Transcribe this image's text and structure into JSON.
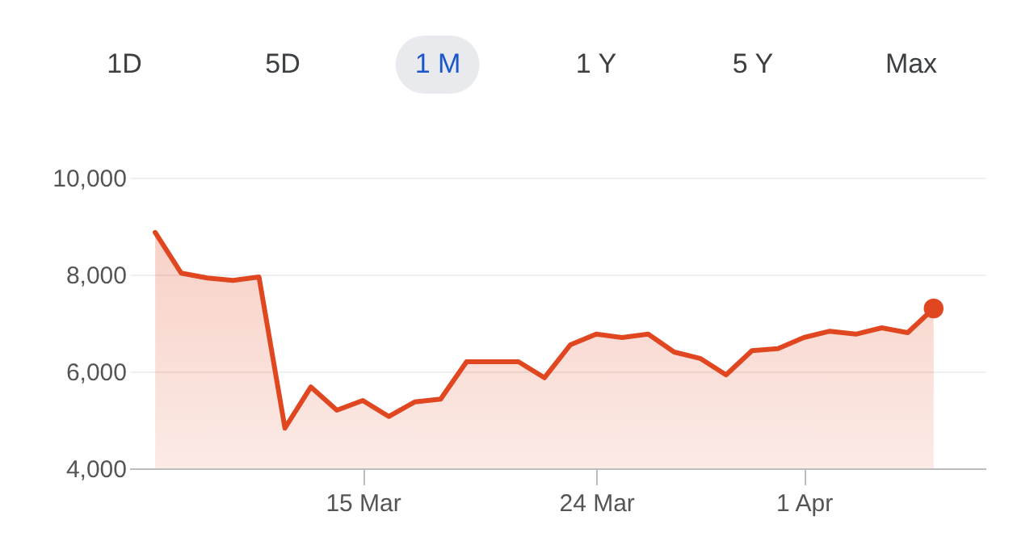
{
  "chart_data": {
    "type": "area",
    "x": [
      "--03-07",
      "--03-08",
      "--03-09",
      "--03-10",
      "--03-11",
      "--03-12",
      "--03-13",
      "--03-14",
      "--03-15",
      "--03-16",
      "--03-17",
      "--03-18",
      "--03-19",
      "--03-20",
      "--03-21",
      "--03-22",
      "--03-23",
      "--03-24",
      "--03-25",
      "--03-26",
      "--03-27",
      "--03-28",
      "--03-29",
      "--03-30",
      "--03-31",
      "--04-01",
      "--04-02",
      "--04-03",
      "--04-04",
      "--04-05",
      "--04-06"
    ],
    "series": [
      {
        "color": "#e0461f",
        "values": [
          8870,
          8030,
          7930,
          7880,
          7950,
          4830,
          5680,
          5200,
          5400,
          5070,
          5370,
          5430,
          6200,
          6200,
          6200,
          5870,
          6550,
          6770,
          6700,
          6770,
          6400,
          6270,
          5930,
          6430,
          6470,
          6700,
          6830,
          6770,
          6900,
          6800,
          7300
        ]
      },
      {
        "type": "scatter",
        "color": "#e0461f",
        "x": [
          "--04-06"
        ],
        "values": [
          7300
        ]
      }
    ],
    "xlim": [
      "--03-06",
      "--04-08"
    ],
    "xticks": [
      {
        "value": "--03-15",
        "label": "15 Mar"
      },
      {
        "value": "--03-24",
        "label": "24 Mar"
      },
      {
        "value": "--04-01",
        "label": "1 Apr"
      }
    ],
    "ylim": [
      4000,
      10000
    ],
    "yticks": [
      {
        "value": 4000,
        "label": "4,000"
      },
      {
        "value": 6000,
        "label": "6,000"
      },
      {
        "value": 8000,
        "label": "8,000"
      },
      {
        "value": 10000,
        "label": "10,000"
      }
    ],
    "grid": "y",
    "annotations": [
      "1D",
      "5D",
      "1 M",
      "1 Y",
      "5 Y",
      "Max"
    ]
  }
}
